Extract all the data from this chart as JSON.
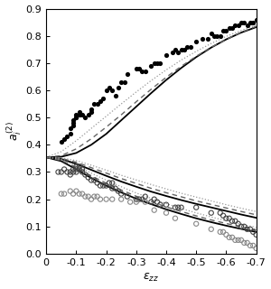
{
  "xlim": [
    0,
    -0.7
  ],
  "ylim": [
    0,
    0.9
  ],
  "xticks": [
    0,
    -0.1,
    -0.2,
    -0.3,
    -0.4,
    -0.5,
    -0.6,
    -0.7
  ],
  "yticks": [
    0,
    0.1,
    0.2,
    0.3,
    0.4,
    0.5,
    0.6,
    0.7,
    0.8,
    0.9
  ],
  "scatter_black_x": [
    -0.05,
    -0.06,
    -0.07,
    -0.08,
    -0.08,
    -0.09,
    -0.09,
    -0.09,
    -0.1,
    -0.1,
    -0.1,
    -0.11,
    -0.11,
    -0.12,
    -0.13,
    -0.14,
    -0.15,
    -0.15,
    -0.16,
    -0.17,
    -0.18,
    -0.19,
    -0.2,
    -0.21,
    -0.22,
    -0.23,
    -0.24,
    -0.25,
    -0.26,
    -0.27,
    -0.3,
    -0.31,
    -0.32,
    -0.33,
    -0.35,
    -0.36,
    -0.37,
    -0.38,
    -0.4,
    -0.42,
    -0.43,
    -0.44,
    -0.45,
    -0.46,
    -0.47,
    -0.48,
    -0.5,
    -0.52,
    -0.54,
    -0.55,
    -0.56,
    -0.57,
    -0.58,
    -0.59,
    -0.6,
    -0.61,
    -0.62,
    -0.63,
    -0.64,
    -0.65,
    -0.66,
    -0.67,
    -0.68,
    -0.69,
    -0.7
  ],
  "scatter_black_y": [
    0.41,
    0.42,
    0.43,
    0.44,
    0.46,
    0.47,
    0.48,
    0.49,
    0.5,
    0.5,
    0.51,
    0.51,
    0.52,
    0.51,
    0.5,
    0.51,
    0.52,
    0.53,
    0.55,
    0.55,
    0.56,
    0.57,
    0.6,
    0.61,
    0.6,
    0.58,
    0.61,
    0.63,
    0.63,
    0.66,
    0.68,
    0.68,
    0.67,
    0.67,
    0.69,
    0.7,
    0.7,
    0.7,
    0.73,
    0.74,
    0.75,
    0.74,
    0.75,
    0.75,
    0.76,
    0.76,
    0.78,
    0.79,
    0.79,
    0.81,
    0.8,
    0.8,
    0.8,
    0.82,
    0.82,
    0.83,
    0.83,
    0.84,
    0.84,
    0.85,
    0.85,
    0.84,
    0.85,
    0.85,
    0.86
  ],
  "scatter_darkgray_x": [
    -0.04,
    -0.05,
    -0.06,
    -0.07,
    -0.08,
    -0.08,
    -0.09,
    -0.09,
    -0.1,
    -0.1,
    -0.1,
    -0.11,
    -0.11,
    -0.12,
    -0.12,
    -0.13,
    -0.14,
    -0.15,
    -0.16,
    -0.17,
    -0.18,
    -0.19,
    -0.2,
    -0.21,
    -0.22,
    -0.22,
    -0.23,
    -0.24,
    -0.25,
    -0.27,
    -0.3,
    -0.31,
    -0.32,
    -0.33,
    -0.35,
    -0.36,
    -0.37,
    -0.38,
    -0.4,
    -0.43,
    -0.44,
    -0.45,
    -0.5,
    -0.55,
    -0.58,
    -0.59,
    -0.6,
    -0.61,
    -0.62,
    -0.63,
    -0.64,
    -0.65,
    -0.66,
    -0.67,
    -0.68,
    -0.69,
    -0.7
  ],
  "scatter_darkgray_y": [
    0.3,
    0.3,
    0.31,
    0.3,
    0.29,
    0.3,
    0.3,
    0.31,
    0.3,
    0.31,
    0.32,
    0.32,
    0.31,
    0.3,
    0.31,
    0.29,
    0.28,
    0.27,
    0.27,
    0.26,
    0.25,
    0.25,
    0.25,
    0.26,
    0.24,
    0.26,
    0.24,
    0.23,
    0.22,
    0.21,
    0.2,
    0.2,
    0.2,
    0.21,
    0.19,
    0.2,
    0.19,
    0.18,
    0.18,
    0.17,
    0.17,
    0.17,
    0.17,
    0.15,
    0.15,
    0.14,
    0.13,
    0.13,
    0.12,
    0.12,
    0.11,
    0.1,
    0.1,
    0.09,
    0.09,
    0.08,
    0.07
  ],
  "scatter_lightgray_x": [
    -0.05,
    -0.06,
    -0.08,
    -0.09,
    -0.1,
    -0.11,
    -0.12,
    -0.13,
    -0.14,
    -0.15,
    -0.16,
    -0.17,
    -0.18,
    -0.2,
    -0.22,
    -0.25,
    -0.28,
    -0.3,
    -0.33,
    -0.36,
    -0.4,
    -0.43,
    -0.5,
    -0.55,
    -0.58,
    -0.59,
    -0.6,
    -0.61,
    -0.62,
    -0.63,
    -0.64,
    -0.65,
    -0.66,
    -0.67,
    -0.68,
    -0.69,
    -0.7
  ],
  "scatter_lightgray_y": [
    0.22,
    0.22,
    0.23,
    0.22,
    0.23,
    0.22,
    0.22,
    0.21,
    0.21,
    0.2,
    0.21,
    0.21,
    0.2,
    0.2,
    0.2,
    0.2,
    0.19,
    0.19,
    0.19,
    0.16,
    0.15,
    0.13,
    0.11,
    0.09,
    0.08,
    0.08,
    0.07,
    0.06,
    0.06,
    0.05,
    0.05,
    0.05,
    0.04,
    0.04,
    0.03,
    0.03,
    0.02
  ],
  "curve_x": [
    0.0,
    -0.05,
    -0.1,
    -0.15,
    -0.2,
    -0.25,
    -0.3,
    -0.35,
    -0.4,
    -0.45,
    -0.5,
    -0.55,
    -0.6,
    -0.65,
    -0.7
  ],
  "curve_a1_solid": [
    0.354,
    0.356,
    0.37,
    0.4,
    0.44,
    0.49,
    0.54,
    0.59,
    0.638,
    0.682,
    0.722,
    0.757,
    0.787,
    0.812,
    0.832
  ],
  "curve_a1_dashed": [
    0.354,
    0.36,
    0.385,
    0.422,
    0.465,
    0.51,
    0.558,
    0.604,
    0.648,
    0.688,
    0.725,
    0.758,
    0.787,
    0.813,
    0.835
  ],
  "curve_a1_dotted": [
    0.354,
    0.375,
    0.415,
    0.46,
    0.505,
    0.55,
    0.594,
    0.636,
    0.675,
    0.711,
    0.743,
    0.772,
    0.798,
    0.82,
    0.84
  ],
  "curve_a2_solid": [
    0.354,
    0.348,
    0.33,
    0.308,
    0.286,
    0.265,
    0.246,
    0.228,
    0.212,
    0.197,
    0.183,
    0.17,
    0.157,
    0.144,
    0.132
  ],
  "curve_a2_dashed": [
    0.354,
    0.35,
    0.336,
    0.316,
    0.296,
    0.276,
    0.258,
    0.24,
    0.224,
    0.209,
    0.194,
    0.181,
    0.168,
    0.155,
    0.143
  ],
  "curve_a2_dotted": [
    0.354,
    0.352,
    0.342,
    0.325,
    0.307,
    0.288,
    0.271,
    0.254,
    0.238,
    0.222,
    0.208,
    0.194,
    0.18,
    0.167,
    0.155
  ],
  "curve_a3_solid": [
    0.354,
    0.34,
    0.31,
    0.278,
    0.25,
    0.225,
    0.202,
    0.182,
    0.163,
    0.146,
    0.13,
    0.116,
    0.103,
    0.091,
    0.08
  ],
  "curve_a3_dashed": [
    0.354,
    0.343,
    0.316,
    0.286,
    0.259,
    0.234,
    0.211,
    0.191,
    0.172,
    0.155,
    0.139,
    0.124,
    0.111,
    0.099,
    0.088
  ],
  "curve_a3_dotted": [
    0.354,
    0.346,
    0.323,
    0.296,
    0.27,
    0.246,
    0.223,
    0.203,
    0.184,
    0.166,
    0.15,
    0.135,
    0.121,
    0.108,
    0.097
  ]
}
